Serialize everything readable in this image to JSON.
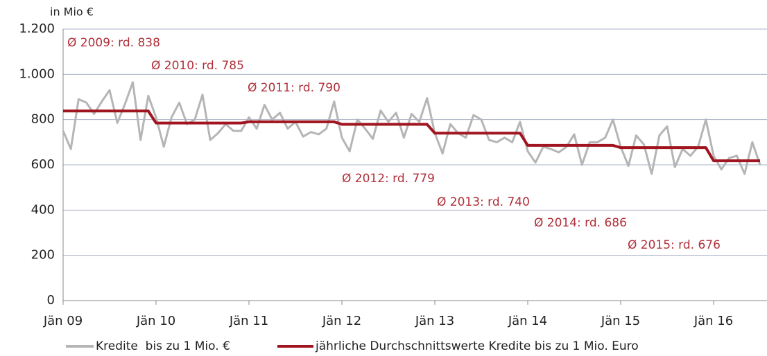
{
  "chart_data": {
    "type": "line",
    "axis_title": "in Mio €",
    "categories": [
      "Jän 09",
      null,
      null,
      null,
      null,
      null,
      null,
      null,
      null,
      null,
      null,
      null,
      "Jän 10",
      null,
      null,
      null,
      null,
      null,
      null,
      null,
      null,
      null,
      null,
      null,
      "Jän 11",
      null,
      null,
      null,
      null,
      null,
      null,
      null,
      null,
      null,
      null,
      null,
      "Jän 12",
      null,
      null,
      null,
      null,
      null,
      null,
      null,
      null,
      null,
      null,
      null,
      "Jän 13",
      null,
      null,
      null,
      null,
      null,
      null,
      null,
      null,
      null,
      null,
      null,
      "Jän 14",
      null,
      null,
      null,
      null,
      null,
      null,
      null,
      null,
      null,
      null,
      null,
      "Jän 15",
      null,
      null,
      null,
      null,
      null,
      null,
      null,
      null,
      null,
      null,
      null,
      "Jän 16",
      null,
      null,
      null,
      null,
      null,
      null
    ],
    "series": [
      {
        "name": "Kredite  bis zu 1 Mio. €",
        "color": "#b5b5b5",
        "values": [
          750,
          670,
          890,
          875,
          825,
          880,
          930,
          785,
          870,
          965,
          710,
          905,
          810,
          680,
          810,
          875,
          780,
          800,
          910,
          710,
          740,
          780,
          750,
          750,
          810,
          760,
          865,
          800,
          830,
          760,
          790,
          725,
          745,
          735,
          760,
          880,
          720,
          660,
          800,
          760,
          715,
          840,
          790,
          830,
          720,
          825,
          790,
          895,
          740,
          650,
          780,
          740,
          720,
          820,
          800,
          710,
          700,
          720,
          700,
          790,
          660,
          610,
          680,
          670,
          655,
          680,
          735,
          600,
          700,
          700,
          720,
          800,
          680,
          595,
          730,
          690,
          560,
          730,
          770,
          590,
          670,
          640,
          680,
          800,
          640,
          580,
          630,
          640,
          560,
          700,
          600
        ]
      },
      {
        "name": "jährliche Durchschnittswerte Kredite bis zu 1 Mio. Euro",
        "color": "#a0151f",
        "values": [
          838,
          838,
          838,
          838,
          838,
          838,
          838,
          838,
          838,
          838,
          838,
          838,
          785,
          785,
          785,
          785,
          785,
          785,
          785,
          785,
          785,
          785,
          785,
          785,
          790,
          790,
          790,
          790,
          790,
          790,
          790,
          790,
          790,
          790,
          790,
          790,
          779,
          779,
          779,
          779,
          779,
          779,
          779,
          779,
          779,
          779,
          779,
          779,
          740,
          740,
          740,
          740,
          740,
          740,
          740,
          740,
          740,
          740,
          740,
          740,
          686,
          686,
          686,
          686,
          686,
          686,
          686,
          686,
          686,
          686,
          686,
          686,
          676,
          676,
          676,
          676,
          676,
          676,
          676,
          676,
          676,
          676,
          676,
          676,
          618,
          618,
          618,
          618,
          618,
          618,
          618
        ]
      }
    ],
    "annotations": [
      "Ø 2009: rd. 838",
      "Ø 2010: rd. 785",
      "Ø 2011: rd. 790",
      "Ø 2012: rd. 779",
      "Ø 2013: rd. 740",
      "Ø 2014: rd. 686",
      "Ø 2015: rd. 676"
    ],
    "annotation_color": "#b0303a",
    "ylim": [
      0,
      1200
    ],
    "yticks": [
      0,
      200,
      400,
      600,
      800,
      {
        "value": 1000,
        "label": "1.000"
      },
      {
        "value": 1200,
        "label": "1.200"
      }
    ],
    "grid": true
  }
}
